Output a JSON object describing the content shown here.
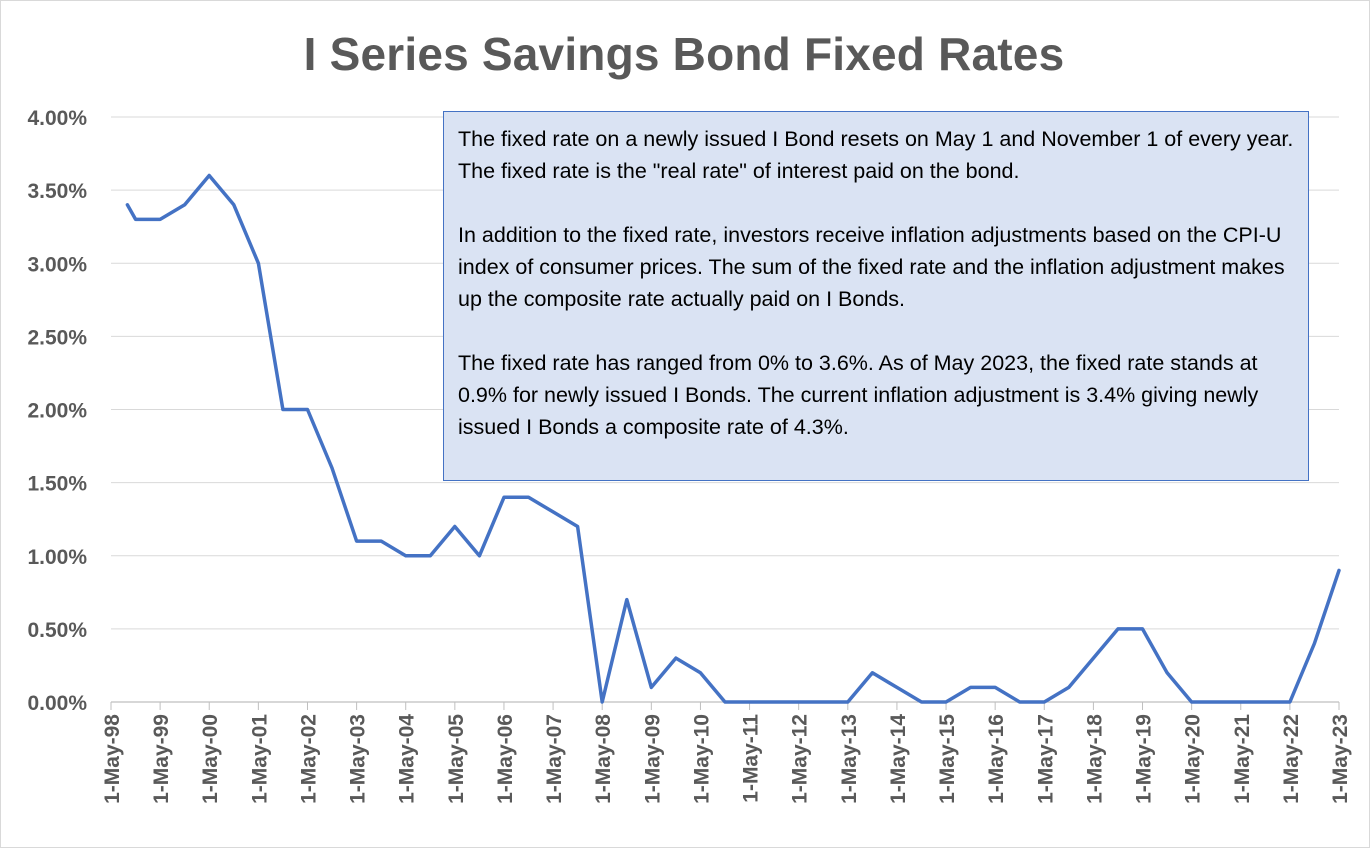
{
  "chart_data": {
    "type": "line",
    "title": "I Series Savings Bond Fixed Rates",
    "xlabel": "",
    "ylabel": "",
    "ylim": [
      0,
      4.0
    ],
    "yticks": [
      "0.00%",
      "0.50%",
      "1.00%",
      "1.50%",
      "2.00%",
      "2.50%",
      "3.00%",
      "3.50%",
      "4.00%"
    ],
    "xticks": [
      "1-May-98",
      "1-May-99",
      "1-May-00",
      "1-May-01",
      "1-May-02",
      "1-May-03",
      "1-May-04",
      "1-May-05",
      "1-May-06",
      "1-May-07",
      "1-May-08",
      "1-May-09",
      "1-May-10",
      "1-May-11",
      "1-May-12",
      "1-May-13",
      "1-May-14",
      "1-May-15",
      "1-May-16",
      "1-May-17",
      "1-May-18",
      "1-May-19",
      "1-May-20",
      "1-May-21",
      "1-May-22",
      "1-May-23"
    ],
    "grid": true,
    "color": "#4472c4",
    "series": [
      {
        "x": [
          "1-Sep-98",
          "1-Nov-98",
          "1-May-99",
          "1-Nov-99",
          "1-May-00",
          "1-Nov-00",
          "1-May-01",
          "1-Nov-01",
          "1-May-02",
          "1-Nov-02",
          "1-May-03",
          "1-Nov-03",
          "1-May-04",
          "1-Nov-04",
          "1-May-05",
          "1-Nov-05",
          "1-May-06",
          "1-Nov-06",
          "1-May-07",
          "1-Nov-07",
          "1-May-08",
          "1-Nov-08",
          "1-May-09",
          "1-Nov-09",
          "1-May-10",
          "1-Nov-10",
          "1-May-11",
          "1-Nov-11",
          "1-May-12",
          "1-Nov-12",
          "1-May-13",
          "1-Nov-13",
          "1-May-14",
          "1-Nov-14",
          "1-May-15",
          "1-Nov-15",
          "1-May-16",
          "1-Nov-16",
          "1-May-17",
          "1-Nov-17",
          "1-May-18",
          "1-Nov-18",
          "1-May-19",
          "1-Nov-19",
          "1-May-20",
          "1-Nov-20",
          "1-May-21",
          "1-Nov-21",
          "1-May-22",
          "1-Nov-22",
          "1-May-23"
        ],
        "values": [
          3.4,
          3.3,
          3.3,
          3.4,
          3.6,
          3.4,
          3.0,
          2.0,
          2.0,
          1.6,
          1.1,
          1.1,
          1.0,
          1.0,
          1.2,
          1.0,
          1.4,
          1.4,
          1.3,
          1.2,
          0.0,
          0.7,
          0.1,
          0.3,
          0.2,
          0.0,
          0.0,
          0.0,
          0.0,
          0.0,
          0.0,
          0.2,
          0.1,
          0.0,
          0.0,
          0.1,
          0.1,
          0.0,
          0.0,
          0.1,
          0.3,
          0.5,
          0.5,
          0.2,
          0.0,
          0.0,
          0.0,
          0.0,
          0.0,
          0.4,
          0.9
        ]
      }
    ],
    "annotation": [
      "The fixed rate on a newly issued I Bond resets on May 1 and November 1 of every year. The fixed rate is the \"real rate\" of interest paid on the bond.",
      "In addition to the fixed rate, investors receive inflation adjustments based on the CPI-U index of consumer prices. The sum of the fixed rate and the inflation adjustment makes up the composite rate actually paid on I Bonds.",
      "The fixed rate has ranged from 0% to 3.6%. As of May 2023, the fixed rate stands at 0.9% for newly issued I Bonds. The current inflation adjustment is 3.4% giving newly issued I Bonds a composite rate of 4.3%."
    ]
  }
}
